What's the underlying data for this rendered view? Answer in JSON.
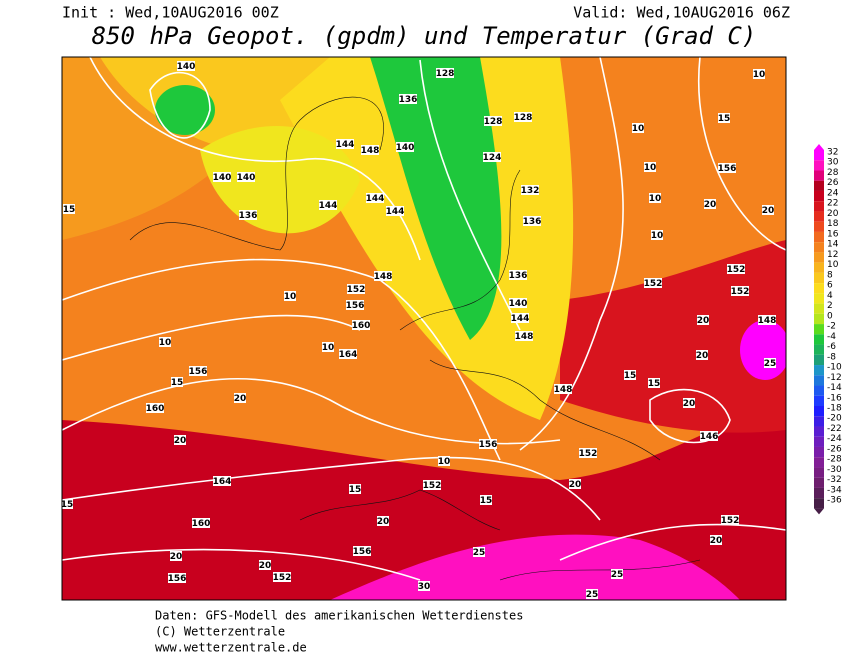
{
  "header": {
    "init": "Init : Wed,10AUG2016 00Z",
    "valid": "Valid: Wed,10AUG2016 06Z",
    "title": "850 hPa Geopot. (gpdm) und Temperatur (Grad C)"
  },
  "colorbar": {
    "labels": [
      32,
      30,
      28,
      26,
      24,
      22,
      20,
      18,
      16,
      14,
      12,
      10,
      8,
      6,
      4,
      2,
      0,
      -2,
      -4,
      -6,
      -8,
      -10,
      -12,
      -14,
      -16,
      -18,
      -20,
      -22,
      -24,
      -26,
      -28,
      -30,
      -32,
      -34,
      -36
    ],
    "colors": [
      "#ff00ff",
      "#ff10c0",
      "#e0007a",
      "#b4001e",
      "#c8001e",
      "#d8141e",
      "#e62d1e",
      "#ee4a1e",
      "#f26a1e",
      "#f4821e",
      "#f69a1e",
      "#f8b41e",
      "#fac81e",
      "#fcdc1e",
      "#f0e61e",
      "#d2e61e",
      "#b4e61e",
      "#5adc1e",
      "#1ec83c",
      "#1eb45a",
      "#1ea078",
      "#1e96c8",
      "#1e78dc",
      "#1e5af0",
      "#1e3cff",
      "#1e1eff",
      "#3c1ee6",
      "#5a1ed2",
      "#6e1ebe",
      "#7a1eaa",
      "#821e96",
      "#781e82",
      "#6e1e6e",
      "#5a1e5a",
      "#461e46"
    ]
  },
  "map": {
    "labels": [
      140,
      128,
      136,
      128,
      128,
      124,
      144,
      148,
      140,
      140,
      140,
      136,
      144,
      144,
      144,
      132,
      136,
      136,
      140,
      144,
      148,
      148,
      152,
      156,
      160,
      164,
      156,
      160,
      164,
      160,
      156,
      152,
      156,
      152,
      156,
      148,
      152,
      152,
      152,
      152,
      148,
      146,
      152,
      156,
      10,
      10,
      10,
      10,
      10,
      15,
      20,
      20,
      15,
      10,
      10,
      10,
      15,
      20,
      20,
      15,
      15,
      20,
      20,
      25,
      20,
      15,
      15,
      10,
      20,
      25,
      25,
      25,
      30,
      20,
      20,
      20,
      20,
      15
    ]
  },
  "footer": {
    "line1": "Daten: GFS-Modell des amerikanischen Wetterdienstes",
    "line2": "(C) Wetterzentrale",
    "line3": "www.wetterzentrale.de"
  }
}
